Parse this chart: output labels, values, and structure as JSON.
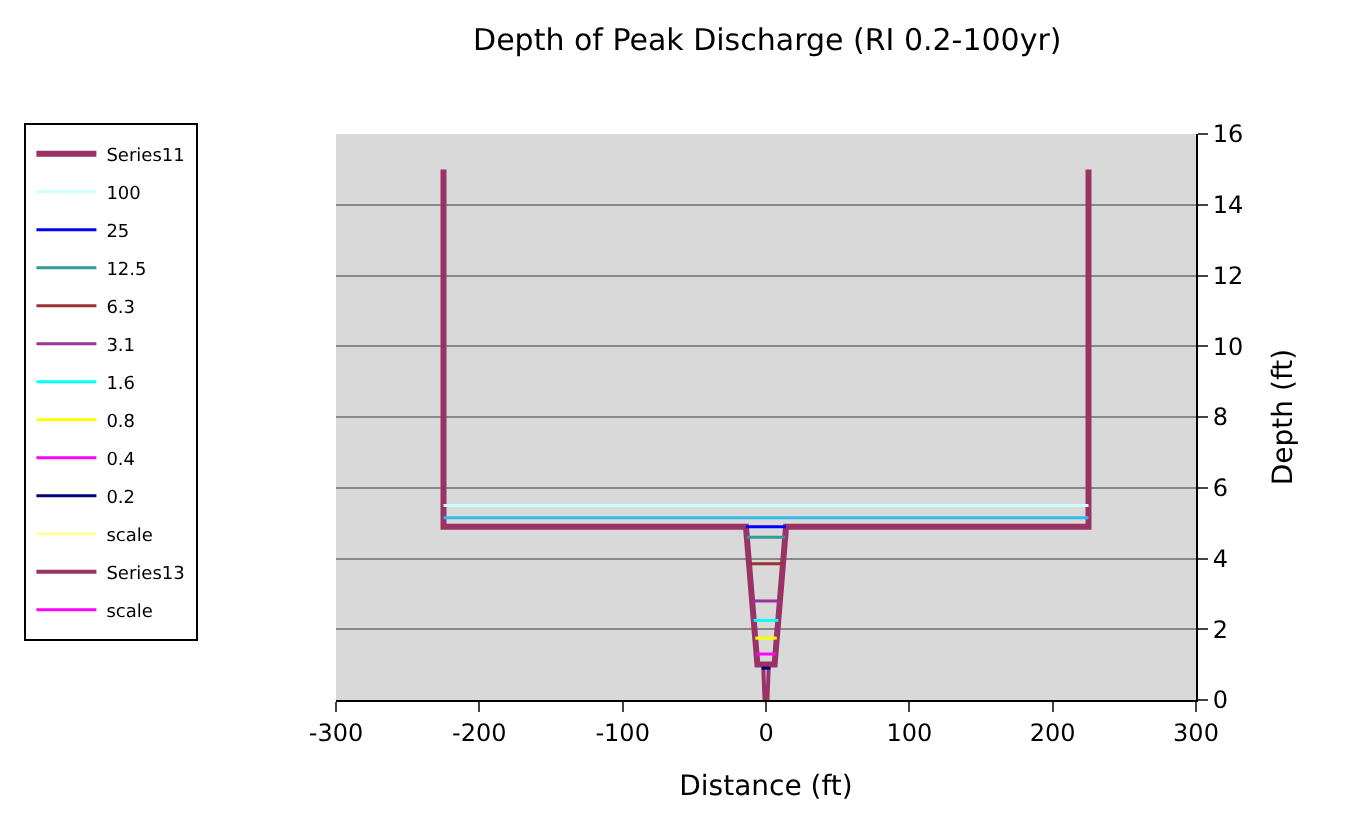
{
  "chart_data": {
    "type": "line",
    "title": "Depth of Peak Discharge (RI 0.2-100yr)",
    "xlabel": "Distance (ft)",
    "ylabel": "Depth (ft)",
    "xlim": [
      -300,
      300
    ],
    "xticks": [
      -300,
      -200,
      -100,
      0,
      100,
      200,
      300
    ],
    "ylim": [
      0,
      16
    ],
    "yticks": [
      0,
      2,
      4,
      6,
      8,
      10,
      12,
      14,
      16
    ],
    "grid": "y",
    "legend": "left",
    "marker": "none",
    "line_style": "solid",
    "series": [
      {
        "name": "Series11",
        "color": "#993366",
        "x": [
          -225,
          -225,
          -14,
          -6,
          6,
          14,
          225,
          225
        ],
        "values": [
          15,
          4.9,
          4.9,
          1,
          1,
          4.9,
          4.9,
          15
        ]
      },
      {
        "name": "100",
        "color": "#ccffff",
        "x": [
          -225,
          225
        ],
        "values": [
          5.5,
          5.5
        ]
      },
      {
        "name": "25",
        "color": "#0000ff",
        "x": [
          -14,
          14
        ],
        "values": [
          4.9,
          4.9
        ]
      },
      {
        "name": "12.5",
        "color": "#339999",
        "x": [
          -13.4,
          13.4
        ],
        "values": [
          4.6,
          4.6
        ]
      },
      {
        "name": "6.3",
        "color": "#993333",
        "x": [
          -11.8,
          11.8
        ],
        "values": [
          3.85,
          3.85
        ]
      },
      {
        "name": "3.1",
        "color": "#993399",
        "x": [
          -9.7,
          9.7
        ],
        "values": [
          2.8,
          2.8
        ]
      },
      {
        "name": "1.6",
        "color": "#00ffff",
        "x": [
          -8.6,
          8.6
        ],
        "values": [
          2.25,
          2.25
        ]
      },
      {
        "name": "0.8",
        "color": "#ffff00",
        "x": [
          -7.5,
          7.5
        ],
        "values": [
          1.75,
          1.75
        ]
      },
      {
        "name": "0.4",
        "color": "#ff00ff",
        "x": [
          -6.6,
          6.6
        ],
        "values": [
          1.3,
          1.3
        ]
      },
      {
        "name": "0.2",
        "color": "#000080",
        "x": [
          -3,
          3
        ],
        "values": [
          0.9,
          0.9
        ]
      },
      {
        "name": "scale",
        "color": "#ffff99"
      },
      {
        "name": "Series13",
        "color": "#993366",
        "x": [
          -2,
          -1,
          1,
          2
        ],
        "values": [
          1,
          0,
          0,
          1
        ]
      },
      {
        "name": "scale",
        "color": "#ff00ff"
      },
      {
        "color": "#33bbee",
        "x": [
          -225,
          225
        ],
        "values": [
          5.15,
          5.15
        ]
      }
    ]
  }
}
